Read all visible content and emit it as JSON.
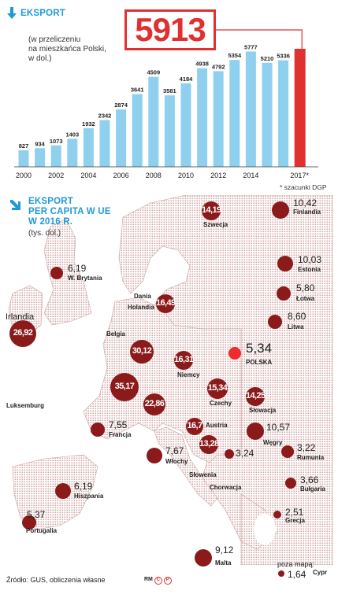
{
  "export_section": {
    "title": "EKSPORT",
    "subtitle_lines": [
      "(w przeliczeniu",
      "na mieszkańca Polski,",
      "w dol.)"
    ],
    "highlight_value": "5913",
    "footnote": "* szacunki DGP"
  },
  "map_section": {
    "title_lines": [
      "EKSPORT",
      "PER CAPITA W UE",
      "W 2016 R."
    ],
    "subtitle": "(tys. dol.)",
    "poza_mapa_label": "poza mapą:",
    "source": "Źródło: GUS, obliczenia własne",
    "logo_text": "RM",
    "logo_c": "C",
    "logo_p": "P"
  },
  "colors": {
    "accent_blue": "#1e9ad6",
    "bar_blue": "#8fd0ee",
    "highlight_red": "#e03131",
    "marker_dark_red": "#8b1a1a",
    "poland_red": "#ee2c2c",
    "map_dots": "#d9b4b4"
  },
  "chart_data": [
    {
      "type": "bar",
      "categories": [
        "2000",
        "2001",
        "2002",
        "2003",
        "2004",
        "2005",
        "2006",
        "2007",
        "2008",
        "2009",
        "2010",
        "2011",
        "2012",
        "2013",
        "2014",
        "2015",
        "2016",
        "2017*"
      ],
      "values": [
        827,
        934,
        1073,
        1403,
        1932,
        2342,
        2874,
        3641,
        4509,
        3581,
        4184,
        4938,
        4792,
        5354,
        5777,
        5210,
        5336,
        5913
      ],
      "value_labels": [
        "827",
        "934",
        "1073",
        "1403",
        "1932",
        "2342",
        "2874",
        "3641",
        "4509",
        "3581",
        "4184",
        "4938",
        "4792",
        "5354",
        "5777",
        "5210",
        "5336",
        ""
      ],
      "x_tick_labels": [
        "2000",
        "2002",
        "2004",
        "2006",
        "2008",
        "2010",
        "2012",
        "2014",
        "2017*"
      ],
      "highlighted_category": "2017*",
      "title": "EKSPORT",
      "grid": false
    },
    {
      "type": "scatter",
      "title": "EKSPORT PER CAPITA W UE W 2016 R.",
      "unit": "(tys. dol.)",
      "markers": [
        {
          "country": "Szwecja",
          "value": "14,19",
          "on_map": true
        },
        {
          "country": "Finlandia",
          "value": "10,42",
          "on_map": true
        },
        {
          "country": "W. Brytania",
          "value": "6,19",
          "on_map": true
        },
        {
          "country": "Estonia",
          "value": "10,03",
          "on_map": true
        },
        {
          "country": "Dania",
          "value": "16,49",
          "on_map": true
        },
        {
          "country": "Holandia",
          "value": "",
          "on_map": true
        },
        {
          "country": "Łotwa",
          "value": "5,80",
          "on_map": true
        },
        {
          "country": "Irlandia",
          "value": "26,92",
          "on_map": true
        },
        {
          "country": "Litwa",
          "value": "8,60",
          "on_map": true
        },
        {
          "country": "Belgia",
          "value": "30,12",
          "on_map": true
        },
        {
          "country": "POLSKA",
          "value": "5,34",
          "on_map": true
        },
        {
          "country": "Niemcy",
          "value": "16,31",
          "on_map": true
        },
        {
          "country": "Luksemburg",
          "value": "35,17",
          "on_map": true
        },
        {
          "country": "Czechy",
          "value": "15,34",
          "on_map": true
        },
        {
          "country": "Słowacja",
          "value": "14,25",
          "on_map": true
        },
        {
          "country": "Francja",
          "value": "7,55",
          "on_map": true
        },
        {
          "country": "Austria",
          "value": "16,7",
          "on_map": true
        },
        {
          "country": "Węgry",
          "value": "10,57",
          "on_map": true
        },
        {
          "country": "Włochy",
          "value": "7,67",
          "on_map": true
        },
        {
          "country": "Słowenia",
          "value": "13,28",
          "on_map": true
        },
        {
          "country": "Chorwacja",
          "value": "3,24",
          "on_map": true
        },
        {
          "country": "Rumunia",
          "value": "3,22",
          "on_map": true
        },
        {
          "country": "Hiszpania",
          "value": "6,19",
          "on_map": true
        },
        {
          "country": "Bułgaria",
          "value": "3,66",
          "on_map": true
        },
        {
          "country": "Grecja",
          "value": "2,51",
          "on_map": true
        },
        {
          "country": "Portugalia",
          "value": "5,37",
          "on_map": true
        },
        {
          "country": "Malta",
          "value": "9,12",
          "on_map": true
        },
        {
          "country": "Cypr",
          "value": "1,64",
          "on_map": false
        },
        {
          "country": "",
          "value": "22,86",
          "on_map": true
        }
      ]
    }
  ]
}
